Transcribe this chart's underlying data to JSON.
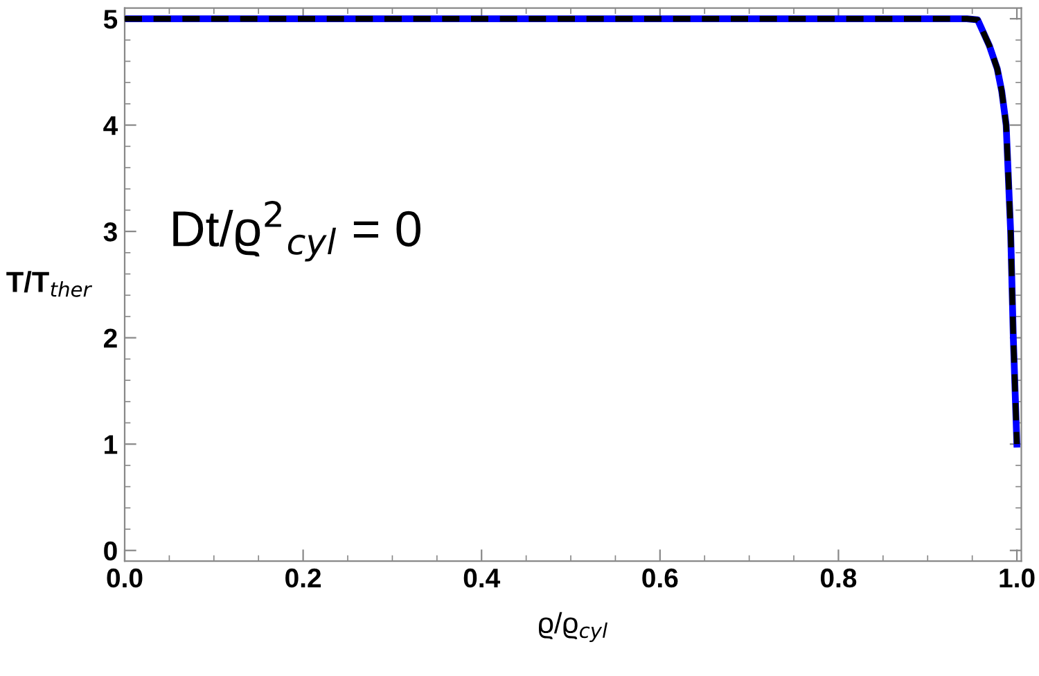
{
  "chart_data": {
    "type": "line",
    "xlabel": "ϱ/ϱ$_{cyl}$",
    "ylabel": "T/T$_{ther}$",
    "annotations": [
      "Dt/ϱ$^{2}$$_{cyl}$ = 0"
    ],
    "x": [
      0,
      0.944,
      0.956,
      0.969,
      0.978,
      0.983,
      0.988,
      0.993,
      0.996,
      1.0
    ],
    "series": [
      {
        "color": "#0000ff",
        "line_style": "solid",
        "values": [
          5,
          5,
          4.99,
          4.75,
          4.53,
          4.32,
          4.0,
          3.0,
          2.0,
          1.0
        ]
      },
      {
        "color": "#000000",
        "line_style": "dashed",
        "values": [
          5,
          5,
          4.99,
          4.75,
          4.53,
          4.32,
          4.0,
          3.0,
          2.0,
          1.0
        ]
      }
    ],
    "xlim": [
      0,
      1.005
    ],
    "ylim": [
      -0.1,
      5.1
    ],
    "xticks": [
      {
        "value": 0,
        "label": "0.0"
      },
      0.2,
      0.4,
      0.6,
      0.8,
      {
        "value": 1,
        "label": "1.0"
      }
    ],
    "yticks": [
      0,
      1,
      2,
      3,
      4,
      5
    ],
    "grid": false,
    "legend": false
  }
}
